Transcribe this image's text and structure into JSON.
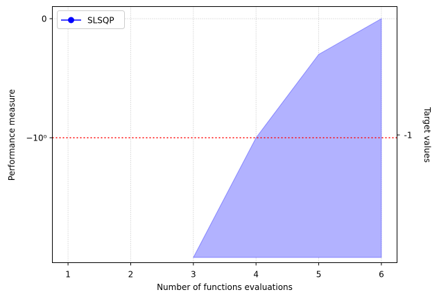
{
  "chart_data": {
    "type": "area",
    "xlabel": "Number of functions evaluations",
    "ylabel": "Performance measure",
    "right_ylabel": "Target values",
    "xlim": [
      0.75,
      6.25
    ],
    "xticks": [
      1,
      2,
      3,
      4,
      5,
      6
    ],
    "yscale": "symlog",
    "yticks": [
      {
        "value": 0,
        "label": "0"
      },
      {
        "value": -1,
        "label": "−10⁰"
      }
    ],
    "right_yticks": [
      {
        "value": -1,
        "label": "-1"
      }
    ],
    "grid": true,
    "legend": {
      "placement": "top-left",
      "entries": [
        "SLSQP"
      ]
    },
    "series": [
      {
        "name": "SLSQP",
        "color": "#0000ff",
        "fill_color": "#b2b2ff",
        "x": [
          3,
          4,
          5,
          6
        ],
        "upper": [
          -2.9,
          -1.0,
          -0.3,
          0
        ],
        "lower": [
          -2.9,
          -2.9,
          -2.9,
          -2.9
        ]
      }
    ],
    "target_line": {
      "value": -1,
      "color": "#ff0000",
      "style": "dotted"
    }
  }
}
